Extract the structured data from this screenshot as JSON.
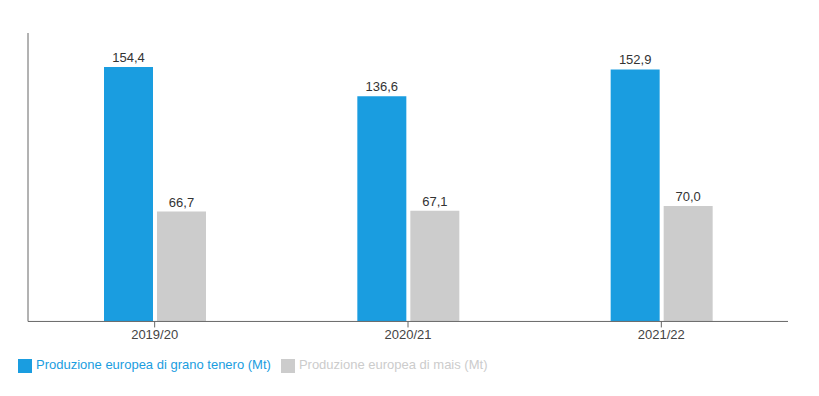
{
  "chart_data": {
    "type": "bar",
    "categories": [
      "2019/20",
      "2020/21",
      "2021/22"
    ],
    "series": [
      {
        "name": "Produzione europea di grano tenero (Mt)",
        "color": "#1a9de0",
        "values": [
          154.4,
          136.6,
          152.9
        ],
        "value_labels": [
          "154,4",
          "136,6",
          "152,9"
        ]
      },
      {
        "name": "Produzione europea di mais (Mt)",
        "color": "#cccccc",
        "values": [
          66.7,
          67.1,
          70.0
        ],
        "value_labels": [
          "66,7",
          "67,1",
          "70,0"
        ]
      }
    ],
    "ylim": [
      0,
      175
    ],
    "data_labels": true,
    "tick_labels": "x",
    "legend": "lower left",
    "grid": false
  }
}
